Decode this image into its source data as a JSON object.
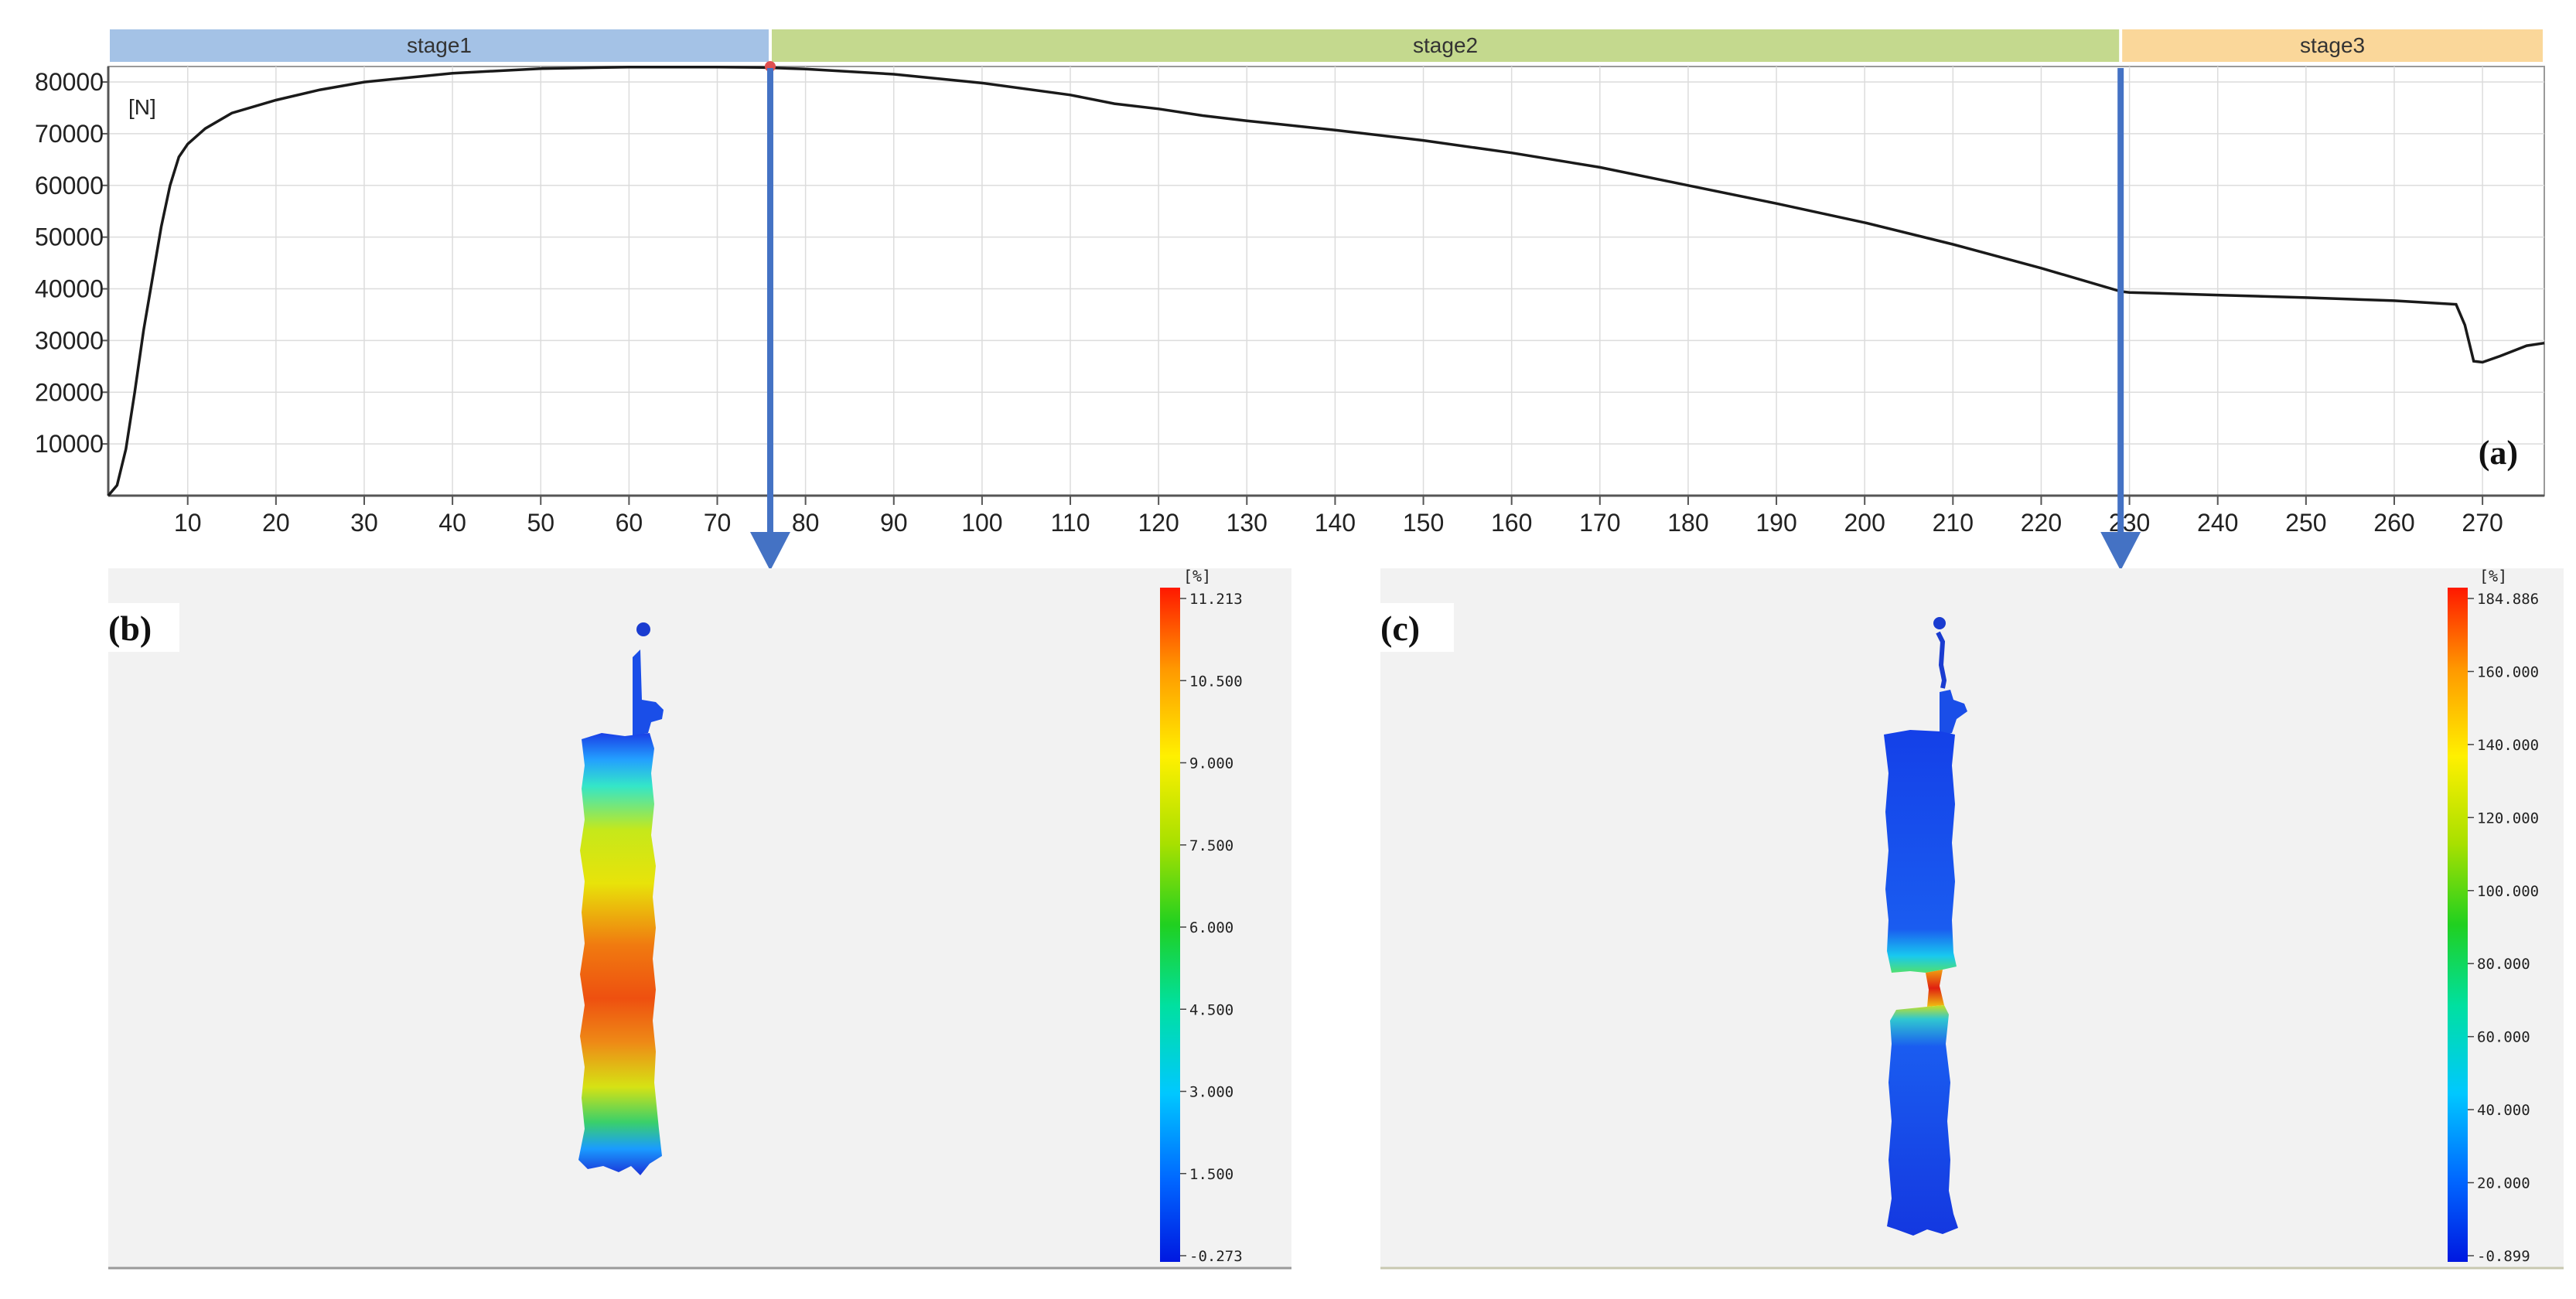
{
  "stages": [
    {
      "label": "stage1",
      "from": 0,
      "to": 76,
      "color": "#a4c2e6"
    },
    {
      "label": "stage2",
      "from": 76,
      "to": 229,
      "color": "#c4d98e"
    },
    {
      "label": "stage3",
      "from": 229,
      "to": 277,
      "color": "#fad79a"
    }
  ],
  "chart_data": {
    "type": "line",
    "ylabel": "[N]",
    "panel_label": "(a)",
    "xlim": [
      1,
      277
    ],
    "ylim": [
      0,
      83000
    ],
    "x_ticks": [
      10,
      20,
      30,
      40,
      50,
      60,
      70,
      80,
      90,
      100,
      110,
      120,
      130,
      140,
      150,
      160,
      170,
      180,
      190,
      200,
      210,
      220,
      230,
      240,
      250,
      260,
      270
    ],
    "y_ticks": [
      10000,
      20000,
      30000,
      40000,
      50000,
      60000,
      70000,
      80000
    ],
    "grid": true,
    "series": [
      {
        "x": [
          1,
          2,
          3,
          4,
          5,
          6,
          7,
          8,
          9,
          10,
          12,
          15,
          20,
          25,
          30,
          40,
          50,
          60,
          70,
          75,
          77,
          80,
          90,
          100,
          110,
          115,
          120,
          125,
          130,
          140,
          150,
          160,
          170,
          180,
          190,
          200,
          210,
          220,
          229,
          230,
          240,
          250,
          260,
          267,
          268,
          269,
          270,
          272,
          275,
          277
        ],
        "y": [
          0,
          2000,
          9000,
          20000,
          32000,
          42000,
          52000,
          60000,
          65500,
          68000,
          71000,
          74000,
          76500,
          78500,
          80000,
          81700,
          82600,
          82900,
          82900,
          82800,
          82700,
          82500,
          81500,
          79800,
          77500,
          75800,
          74800,
          73500,
          72500,
          70700,
          68700,
          66300,
          63500,
          60000,
          56500,
          52800,
          48600,
          44000,
          39500,
          39300,
          38800,
          38300,
          37700,
          37000,
          33000,
          26000,
          25800,
          27000,
          29000,
          29500
        ]
      }
    ],
    "markers": [
      {
        "x": 76,
        "y": 83000,
        "color": "#e05050"
      }
    ]
  },
  "arrows": [
    {
      "x": 76,
      "target": "b"
    },
    {
      "x": 229,
      "target": "c"
    }
  ],
  "panels": [
    {
      "label": "(b)",
      "unit": "[%]",
      "colorbar_ticks": [
        "11.213",
        "10.500",
        "9.000",
        "7.500",
        "6.000",
        "4.500",
        "3.000",
        "1.500",
        "-0.273"
      ]
    },
    {
      "label": "(c)",
      "unit": "[%]",
      "colorbar_ticks": [
        "184.886",
        "160.000",
        "140.000",
        "120.000",
        "100.000",
        "80.000",
        "60.000",
        "40.000",
        "20.000",
        "-0.899"
      ]
    }
  ]
}
